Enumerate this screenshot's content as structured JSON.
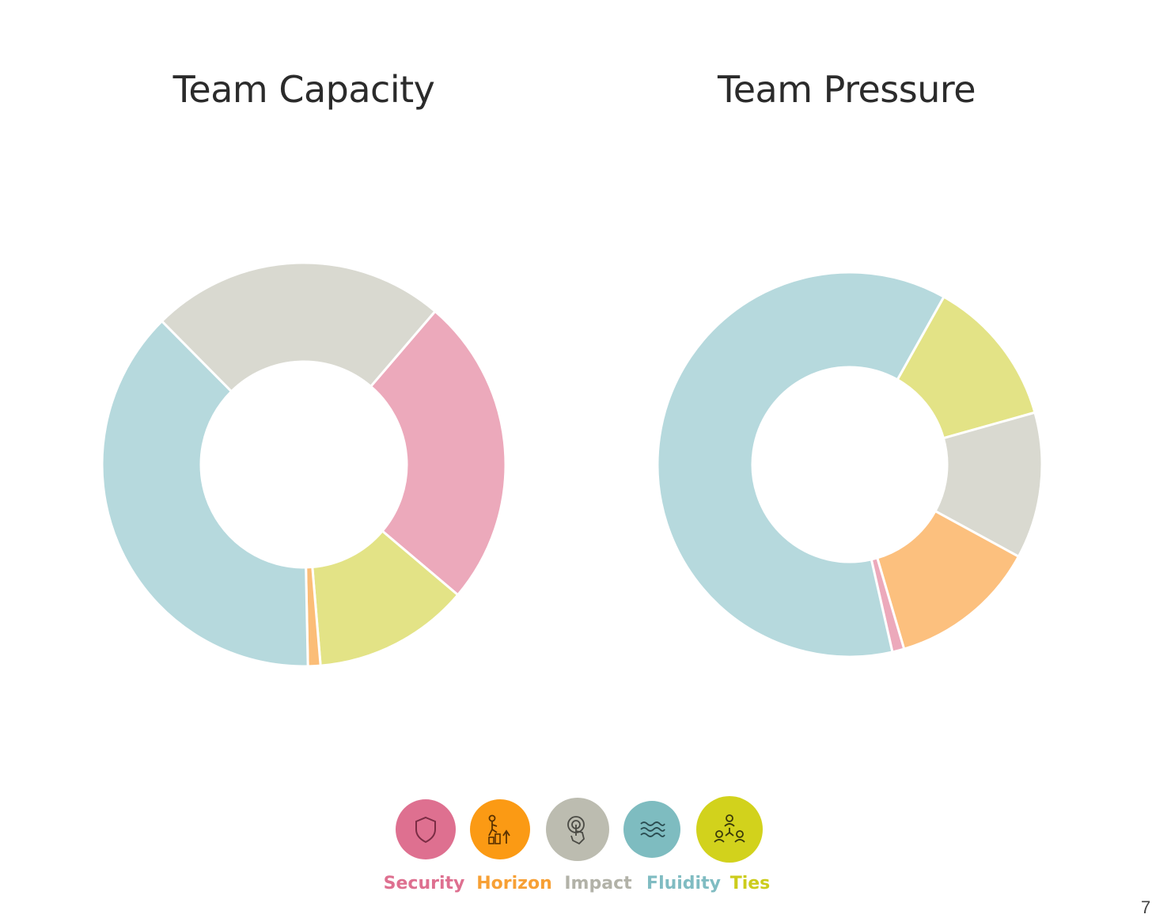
{
  "chart_data": [
    {
      "type": "pie",
      "title": "Team Capacity",
      "donut": true,
      "slices": [
        {
          "name": "Security",
          "value": 24.9,
          "color": "#eca9bb"
        },
        {
          "name": "Ties",
          "value": 12.5,
          "color": "#e3e386"
        },
        {
          "name": "Horizon",
          "value": 1.0,
          "color": "#fbbd77"
        },
        {
          "name": "Fluidity",
          "value": 37.9,
          "color": "#b6d9dd"
        },
        {
          "name": "Impact",
          "value": 23.7,
          "color": "#d9d9d0"
        }
      ]
    },
    {
      "type": "pie",
      "title": "Team Pressure",
      "donut": true,
      "slices": [
        {
          "name": "Ties",
          "value": 12.5,
          "color": "#e3e386"
        },
        {
          "name": "Impact",
          "value": 12.3,
          "color": "#d9d9d0"
        },
        {
          "name": "Horizon",
          "value": 12.5,
          "color": "#fcc07e"
        },
        {
          "name": "Security",
          "value": 1.0,
          "color": "#eca9bb"
        },
        {
          "name": "Fluidity",
          "value": 61.7,
          "color": "#b6d9dd"
        }
      ]
    }
  ],
  "legend": [
    {
      "label": "Security",
      "icon": "shield-icon",
      "circle_color": "#de7090",
      "text_color": "#de7090"
    },
    {
      "label": "Horizon",
      "icon": "climbing-person-icon",
      "circle_color": "#fb9a14",
      "text_color": "#f7a035"
    },
    {
      "label": "Impact",
      "icon": "touch-icon",
      "circle_color": "#bcbcb0",
      "text_color": "#b2b2a8"
    },
    {
      "label": "Fluidity",
      "icon": "waves-icon",
      "circle_color": "#7ebcc0",
      "text_color": "#80bcc2"
    },
    {
      "label": "Ties",
      "icon": "network-people-icon",
      "circle_color": "#d2d21c",
      "text_color": "#cccc1c"
    }
  ],
  "page_number": "7"
}
